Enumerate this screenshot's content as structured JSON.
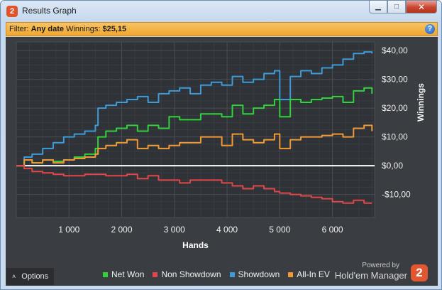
{
  "window": {
    "title": "Results Graph",
    "icon": "hm2-app-icon",
    "controls": {
      "minimize": "▁",
      "maximize": "□",
      "close": "✕"
    }
  },
  "filter": {
    "label": "Filter:",
    "date": "Any date",
    "winnings_label": "Winnings:",
    "winnings_value": "$25,15",
    "help": "?"
  },
  "options_button": {
    "label": "Options",
    "chevron": "˄"
  },
  "legend": [
    {
      "label": "Net Won",
      "color": "#31d23a"
    },
    {
      "label": "Non Showdown",
      "color": "#e0474a"
    },
    {
      "label": "Showdown",
      "color": "#3c9bd8"
    },
    {
      "label": "All-In EV",
      "color": "#f09a37"
    }
  ],
  "branding": {
    "powered_by": "Powered by",
    "name": "Hold'em Manager",
    "logo_text": "2"
  },
  "chart_data": {
    "type": "line",
    "xlabel": "Hands",
    "ylabel": "Winnings",
    "xlim": [
      0,
      6800
    ],
    "ylim": [
      -18,
      43
    ],
    "x_ticks": [
      1000,
      2000,
      3000,
      4000,
      5000,
      6000
    ],
    "x_tick_labels": [
      "1 000",
      "2 000",
      "3 000",
      "4 000",
      "5 000",
      "6 000"
    ],
    "y_ticks": [
      -10,
      0,
      10,
      20,
      30,
      40
    ],
    "y_tick_labels": [
      "-$10,00",
      "$0,00",
      "$10,00",
      "$20,00",
      "$30,00",
      "$40,00"
    ],
    "y_axis_side": "right",
    "grid": true,
    "zero_line": true,
    "series": [
      {
        "name": "Showdown",
        "color": "#3c9bd8",
        "x": [
          0,
          150,
          300,
          500,
          700,
          900,
          1100,
          1300,
          1500,
          1550,
          1700,
          1900,
          2100,
          2300,
          2500,
          2700,
          2900,
          3100,
          3300,
          3500,
          3700,
          3900,
          4100,
          4300,
          4500,
          4700,
          4900,
          5000,
          5200,
          5400,
          5600,
          5800,
          6000,
          6200,
          6400,
          6600,
          6750
        ],
        "y": [
          0,
          3,
          4,
          6,
          8,
          10,
          11,
          12,
          14,
          20,
          21,
          22,
          23,
          24,
          22,
          25,
          26,
          27,
          25,
          28,
          29,
          28,
          31,
          29,
          30,
          32,
          33,
          23,
          31,
          33,
          32,
          34,
          35,
          37,
          39,
          39.5,
          39
        ]
      },
      {
        "name": "Net Won",
        "color": "#31d23a",
        "x": [
          0,
          150,
          300,
          500,
          700,
          900,
          1100,
          1300,
          1500,
          1550,
          1700,
          1900,
          2100,
          2300,
          2500,
          2700,
          2900,
          3100,
          3300,
          3500,
          3700,
          3900,
          4100,
          4300,
          4500,
          4700,
          4900,
          5000,
          5200,
          5400,
          5600,
          5800,
          6000,
          6200,
          6400,
          6600,
          6750
        ],
        "y": [
          0,
          2,
          1,
          2,
          1.5,
          2,
          3,
          4,
          6,
          10,
          12,
          13,
          14,
          12,
          14,
          13,
          17,
          16,
          16,
          18,
          18,
          17,
          21,
          18,
          20,
          21,
          23,
          17,
          23,
          22,
          23,
          23.5,
          24,
          22,
          26,
          27,
          25
        ]
      },
      {
        "name": "All-In EV",
        "color": "#f09a37",
        "x": [
          0,
          150,
          300,
          500,
          700,
          900,
          1100,
          1300,
          1500,
          1550,
          1700,
          1900,
          2100,
          2300,
          2500,
          2700,
          2900,
          3100,
          3300,
          3500,
          3700,
          3900,
          4100,
          4300,
          4500,
          4700,
          4900,
          5000,
          5200,
          5400,
          5600,
          5800,
          6000,
          6200,
          6400,
          6600,
          6750
        ],
        "y": [
          0,
          2,
          1,
          2,
          1,
          2,
          2.5,
          3,
          4,
          6,
          7,
          8,
          9,
          6,
          7,
          6,
          7,
          8,
          8,
          10,
          10,
          7,
          11,
          9,
          8,
          9,
          11,
          6,
          9,
          10,
          10,
          10.5,
          11,
          10,
          13,
          14,
          12
        ]
      },
      {
        "name": "Non Showdown",
        "color": "#e0474a",
        "x": [
          0,
          150,
          300,
          500,
          700,
          900,
          1100,
          1300,
          1500,
          1700,
          1900,
          2100,
          2300,
          2500,
          2700,
          2900,
          3100,
          3300,
          3500,
          3700,
          3900,
          4100,
          4300,
          4500,
          4700,
          4900,
          5000,
          5200,
          5400,
          5600,
          5800,
          6000,
          6200,
          6400,
          6600,
          6750
        ],
        "y": [
          0,
          -1,
          -2,
          -2.5,
          -3,
          -3.5,
          -3.5,
          -3,
          -3,
          -3.5,
          -3.5,
          -3,
          -4.5,
          -3.5,
          -5,
          -5,
          -6,
          -5,
          -5,
          -5,
          -6,
          -7,
          -8,
          -7,
          -8,
          -9,
          -9.5,
          -10,
          -10.5,
          -11,
          -11.5,
          -12.5,
          -13,
          -12,
          -13,
          -13
        ]
      }
    ]
  }
}
